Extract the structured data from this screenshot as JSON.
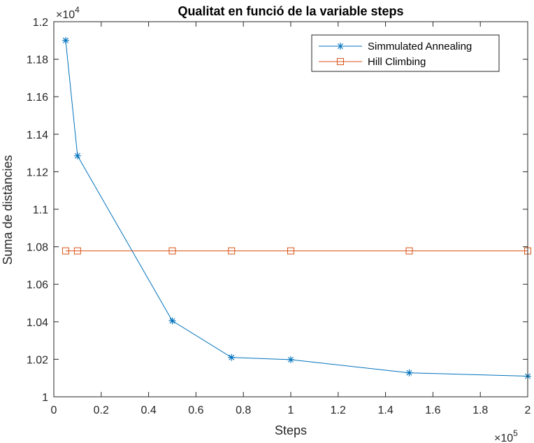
{
  "chart_data": {
    "type": "line",
    "title": "Qualitat en funció de la variable steps",
    "xlabel": "Steps",
    "ylabel": "Suma de distàncies",
    "x_multiplier": {
      "base": "×10",
      "exponent": "5"
    },
    "y_multiplier": {
      "base": "×10",
      "exponent": "4"
    },
    "x": [
      5000,
      10000,
      50000,
      75000,
      100000,
      150000,
      200000
    ],
    "xlim": [
      0,
      200000
    ],
    "ylim": [
      10000,
      12000
    ],
    "x_ticks": [
      0,
      20000,
      40000,
      60000,
      80000,
      100000,
      120000,
      140000,
      160000,
      180000,
      200000
    ],
    "x_tick_labels": [
      "0",
      "0.2",
      "0.4",
      "0.6",
      "0.8",
      "1",
      "1.2",
      "1.4",
      "1.6",
      "1.8",
      "2"
    ],
    "y_ticks": [
      10000,
      10200,
      10400,
      10600,
      10800,
      11000,
      11200,
      11400,
      11600,
      11800,
      12000
    ],
    "y_tick_labels": [
      "1",
      "1.02",
      "1.04",
      "1.06",
      "1.08",
      "1.1",
      "1.12",
      "1.14",
      "1.16",
      "1.18",
      "1.2"
    ],
    "grid": false,
    "legend_position": "top-right",
    "series": [
      {
        "name": "Simmulated Annealing",
        "color": "#0072BD",
        "marker": "asterisk",
        "values": [
          11900,
          11285,
          10405,
          10210,
          10198,
          10128,
          10110
        ]
      },
      {
        "name": "Hill Climbing",
        "color": "#D95319",
        "marker": "square",
        "values": [
          10778,
          10778,
          10778,
          10778,
          10778,
          10778,
          10778
        ]
      }
    ]
  }
}
